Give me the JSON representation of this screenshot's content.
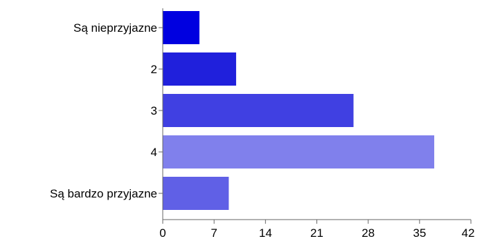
{
  "chart_data": {
    "type": "bar",
    "orientation": "horizontal",
    "title": "",
    "xlabel": "",
    "ylabel": "",
    "categories": [
      "Są nieprzyjazne",
      "2",
      "3",
      "4",
      "Są bardzo przyjazne"
    ],
    "values": [
      5,
      10,
      26,
      37,
      9
    ],
    "colors": [
      "#0000e0",
      "#2020dc",
      "#4040e2",
      "#8080ec",
      "#6060e6"
    ],
    "xlim": [
      0,
      42
    ],
    "xticks": [
      0,
      7,
      14,
      21,
      28,
      35,
      42
    ],
    "grid": false,
    "legend": "none"
  }
}
